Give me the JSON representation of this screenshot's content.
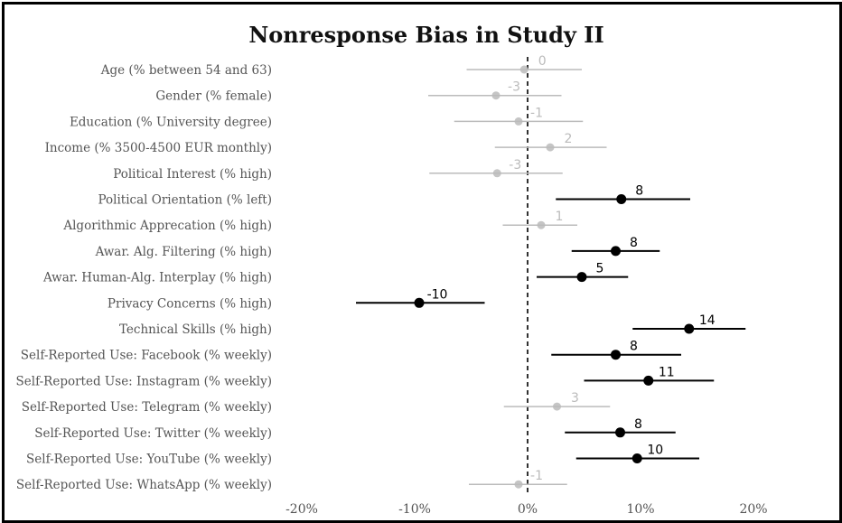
{
  "chart_data": {
    "type": "forest",
    "title": "Nonresponse Bias in Study II",
    "xlim": [
      -0.2,
      0.2
    ],
    "x_ticks": [
      -0.2,
      -0.1,
      0,
      0.1,
      0.2
    ],
    "x_tick_labels": [
      "-20%",
      "-10%",
      "0%",
      "10%",
      "20%"
    ],
    "reference_line": 0,
    "colors": {
      "significant": "#000000",
      "nonsignificant": "#bbbbbb"
    },
    "rows": [
      {
        "label": "Age (% between 54 and 63)",
        "estimate": -0.003,
        "low": -0.054,
        "high": 0.048,
        "value_label": "0",
        "significant": false
      },
      {
        "label": "Gender (% female)",
        "estimate": -0.028,
        "low": -0.088,
        "high": 0.03,
        "value_label": "-3",
        "significant": false
      },
      {
        "label": "Education (% University degree)",
        "estimate": -0.008,
        "low": -0.065,
        "high": 0.049,
        "value_label": "-1",
        "significant": false
      },
      {
        "label": "Income (% 3500-4500 EUR monthly)",
        "estimate": 0.02,
        "low": -0.029,
        "high": 0.07,
        "value_label": "2",
        "significant": false
      },
      {
        "label": "Political Interest (% high)",
        "estimate": -0.027,
        "low": -0.087,
        "high": 0.031,
        "value_label": "-3",
        "significant": false
      },
      {
        "label": "Political Orientation (% left)",
        "estimate": 0.083,
        "low": 0.025,
        "high": 0.144,
        "value_label": "8",
        "significant": true
      },
      {
        "label": "Algorithmic Apprecation (% high)",
        "estimate": 0.012,
        "low": -0.022,
        "high": 0.044,
        "value_label": "1",
        "significant": false
      },
      {
        "label": "Awar. Alg. Filtering (% high)",
        "estimate": 0.078,
        "low": 0.039,
        "high": 0.117,
        "value_label": "8",
        "significant": true
      },
      {
        "label": "Awar. Human-Alg. Interplay (% high)",
        "estimate": 0.048,
        "low": 0.008,
        "high": 0.089,
        "value_label": "5",
        "significant": true
      },
      {
        "label": "Privacy Concerns (% high)",
        "estimate": -0.096,
        "low": -0.152,
        "high": -0.038,
        "value_label": "-10",
        "significant": true
      },
      {
        "label": "Technical Skills (% high)",
        "estimate": 0.143,
        "low": 0.093,
        "high": 0.193,
        "value_label": "14",
        "significant": true
      },
      {
        "label": "Self-Reported Use: Facebook (% weekly)",
        "estimate": 0.078,
        "low": 0.021,
        "high": 0.136,
        "value_label": "8",
        "significant": true
      },
      {
        "label": "Self-Reported Use: Instagram (% weekly)",
        "estimate": 0.107,
        "low": 0.05,
        "high": 0.165,
        "value_label": "11",
        "significant": true
      },
      {
        "label": "Self-Reported Use: Telegram (% weekly)",
        "estimate": 0.026,
        "low": -0.021,
        "high": 0.073,
        "value_label": "3",
        "significant": false
      },
      {
        "label": "Self-Reported Use: Twitter (% weekly)",
        "estimate": 0.082,
        "low": 0.033,
        "high": 0.131,
        "value_label": "8",
        "significant": true
      },
      {
        "label": "Self-Reported Use: YouTube (% weekly)",
        "estimate": 0.097,
        "low": 0.043,
        "high": 0.152,
        "value_label": "10",
        "significant": true
      },
      {
        "label": "Self-Reported Use: WhatsApp (% weekly)",
        "estimate": -0.008,
        "low": -0.052,
        "high": 0.035,
        "value_label": "-1",
        "significant": false
      }
    ]
  }
}
